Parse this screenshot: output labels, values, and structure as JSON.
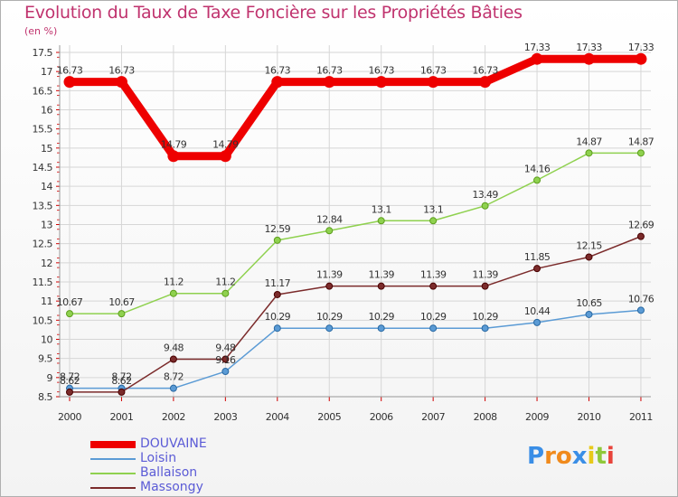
{
  "chart_data": {
    "type": "line",
    "title": "Evolution du Taux de Taxe Foncière sur les Propriétés Bâties",
    "ylabel": "(en %)",
    "xlabel": "",
    "ylim": [
      8.5,
      17.5
    ],
    "y_ticks": [
      "8.5",
      "9",
      "9.5",
      "10",
      "10.5",
      "11",
      "11.5",
      "12",
      "12.5",
      "13",
      "13.5",
      "14",
      "14.5",
      "15",
      "15.5",
      "16",
      "16.5",
      "17",
      "17.5"
    ],
    "categories": [
      "2000",
      "2001",
      "2002",
      "2003",
      "2004",
      "2005",
      "2006",
      "2007",
      "2008",
      "2009",
      "2010",
      "2011"
    ],
    "series": [
      {
        "name": "DOUVAINE",
        "color": "#ee0000",
        "values": [
          16.73,
          16.73,
          14.79,
          14.79,
          16.73,
          16.73,
          16.73,
          16.73,
          16.73,
          17.33,
          17.33,
          17.33
        ],
        "labels": [
          "16.73",
          "16.73",
          "14.79",
          "14.79",
          "16.73",
          "16.73",
          "16.73",
          "16.73",
          "16.73",
          "17.33",
          "17.33",
          "17.33"
        ]
      },
      {
        "name": "Loisin",
        "color": "#5b9bd5",
        "values": [
          8.72,
          8.72,
          8.72,
          9.16,
          10.29,
          10.29,
          10.29,
          10.29,
          10.29,
          10.44,
          10.65,
          10.76
        ],
        "labels": [
          "8.72",
          "8.72",
          "8.72",
          "9.16",
          "10.29",
          "10.29",
          "10.29",
          "10.29",
          "10.29",
          "10.44",
          "10.65",
          "10.76"
        ]
      },
      {
        "name": "Ballaison",
        "color": "#8fd14f",
        "values": [
          10.67,
          10.67,
          11.2,
          11.2,
          12.59,
          12.84,
          13.1,
          13.1,
          13.49,
          14.16,
          14.87,
          14.87
        ],
        "labels": [
          "10.67",
          "10.67",
          "11.2",
          "11.2",
          "12.59",
          "12.84",
          "13.1",
          "13.1",
          "13.49",
          "14.16",
          "14.87",
          "14.87"
        ]
      },
      {
        "name": "Massongy",
        "color": "#7b2b2b",
        "values": [
          8.62,
          8.62,
          9.48,
          9.48,
          11.17,
          11.39,
          11.39,
          11.39,
          11.39,
          11.85,
          12.15,
          12.69
        ],
        "labels": [
          "8.62",
          "8.62",
          "9.48",
          "9.48",
          "11.17",
          "11.39",
          "11.39",
          "11.39",
          "11.39",
          "11.85",
          "12.15",
          "12.69"
        ]
      }
    ]
  },
  "logo": {
    "text": "Proxiti",
    "letters": [
      "P",
      "r",
      "o",
      "x",
      "i",
      "t",
      "i"
    ],
    "colors": [
      "#3a8ee6",
      "#f08a1c",
      "#f08a1c",
      "#3a8ee6",
      "#e8c91a",
      "#8fc93a",
      "#e8433a"
    ]
  }
}
